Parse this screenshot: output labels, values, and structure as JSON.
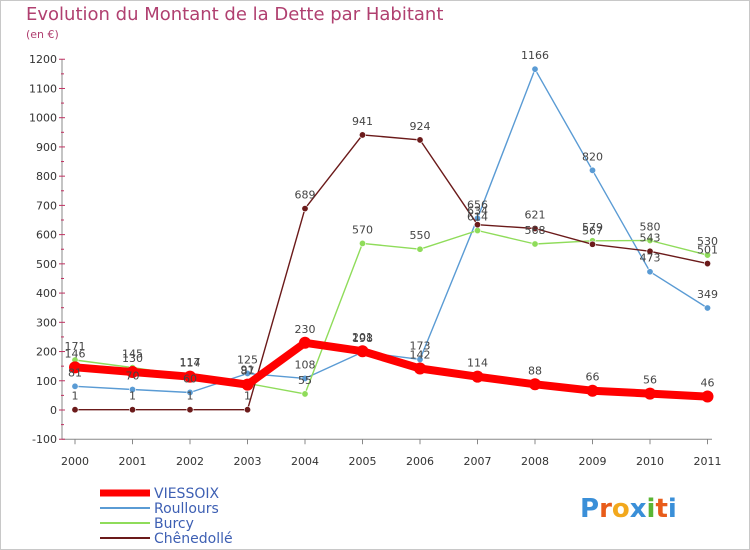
{
  "chart_data": {
    "type": "line",
    "title": "Evolution du Montant de la Dette par Habitant",
    "subtitle": "(en €)",
    "x": [
      "2000",
      "2001",
      "2002",
      "2003",
      "2004",
      "2005",
      "2006",
      "2007",
      "2008",
      "2009",
      "2010",
      "2011"
    ],
    "ylim": [
      -100,
      1200
    ],
    "yticks": [
      -100,
      0,
      100,
      200,
      300,
      400,
      500,
      600,
      700,
      800,
      900,
      1000,
      1100,
      1200
    ],
    "grid": false,
    "legend": "bottom-left",
    "series": [
      {
        "name": "Roullours",
        "color": "#5a9bd4",
        "values": [
          81,
          70,
          60,
          125,
          108,
          198,
          173,
          656,
          1166,
          820,
          473,
          349
        ]
      },
      {
        "name": "Burcy",
        "color": "#8fdc5a",
        "values": [
          171,
          145,
          117,
          91,
          55,
          570,
          550,
          614,
          568,
          579,
          580,
          530
        ]
      },
      {
        "name": "Chênedollé",
        "color": "#6b1a1a",
        "values": [
          1,
          1,
          1,
          1,
          689,
          941,
          924,
          634,
          621,
          567,
          543,
          501
        ]
      },
      {
        "name": "VIESSOIX",
        "color": "#ff0000",
        "values": [
          146,
          130,
          114,
          87,
          230,
          201,
          142,
          114,
          88,
          66,
          56,
          46
        ]
      }
    ]
  },
  "branding": {
    "logo_text": "Proxiti"
  }
}
